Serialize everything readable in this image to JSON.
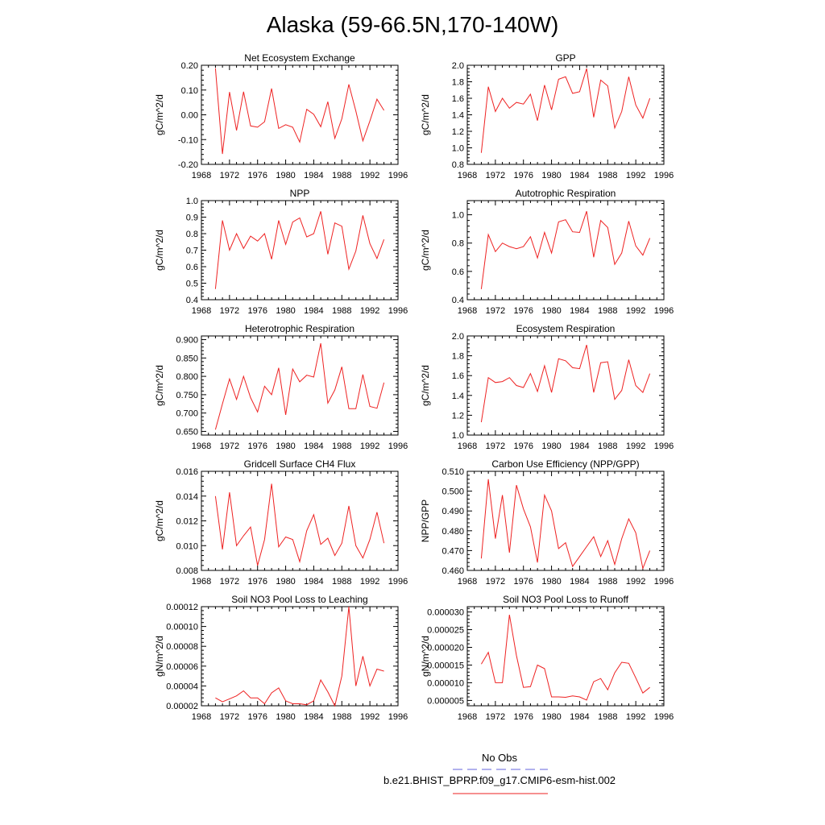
{
  "title": "Alaska (59-66.5N,170-140W)",
  "legend": {
    "entries": [
      {
        "label": "No Obs",
        "color": "#6666dd",
        "dash": true
      },
      {
        "label": "b.e21.BHIST_BPRP.f09_g17.CMIP6-esm-hist.002",
        "color": "#ee2222",
        "dash": false
      }
    ]
  },
  "chart_data": [
    {
      "type": "line",
      "title": "Net Ecosystem Exchange",
      "ylabel": "gC/m^2/d",
      "xlim": [
        1968,
        1996
      ],
      "ylim": [
        -0.2,
        0.2
      ],
      "xticks": [
        1968,
        1972,
        1976,
        1980,
        1984,
        1988,
        1992,
        1996
      ],
      "yticks": [
        -0.2,
        -0.1,
        0.0,
        0.1,
        0.2
      ],
      "yticklabels": [
        "-0.20",
        "-0.10",
        "0.00",
        "0.10",
        "0.20"
      ],
      "series": [
        {
          "color": "#ee2222",
          "x": [
            1970,
            1971,
            1972,
            1973,
            1974,
            1975,
            1976,
            1977,
            1978,
            1979,
            1980,
            1981,
            1982,
            1983,
            1984,
            1985,
            1986,
            1987,
            1988,
            1989,
            1990,
            1991,
            1992,
            1993,
            1994
          ],
          "y": [
            0.188,
            -0.158,
            0.092,
            -0.063,
            0.093,
            -0.045,
            -0.05,
            -0.028,
            0.106,
            -0.055,
            -0.04,
            -0.05,
            -0.11,
            0.022,
            0.002,
            -0.048,
            0.053,
            -0.095,
            -0.016,
            0.123,
            0.015,
            -0.105,
            -0.025,
            0.063,
            0.018
          ]
        }
      ]
    },
    {
      "type": "line",
      "title": "GPP",
      "ylabel": "gC/m^2/d",
      "xlim": [
        1968,
        1996
      ],
      "ylim": [
        0.8,
        2.0
      ],
      "xticks": [
        1968,
        1972,
        1976,
        1980,
        1984,
        1988,
        1992,
        1996
      ],
      "yticks": [
        0.8,
        1.0,
        1.2,
        1.4,
        1.6,
        1.8,
        2.0
      ],
      "yticklabels": [
        "0.8",
        "1.0",
        "1.2",
        "1.4",
        "1.6",
        "1.8",
        "2.0"
      ],
      "series": [
        {
          "color": "#ee2222",
          "x": [
            1970,
            1971,
            1972,
            1973,
            1974,
            1975,
            1976,
            1977,
            1978,
            1979,
            1980,
            1981,
            1982,
            1983,
            1984,
            1985,
            1986,
            1987,
            1988,
            1989,
            1990,
            1991,
            1992,
            1993,
            1994
          ],
          "y": [
            0.94,
            1.74,
            1.44,
            1.6,
            1.48,
            1.55,
            1.53,
            1.65,
            1.33,
            1.76,
            1.46,
            1.83,
            1.86,
            1.66,
            1.68,
            1.96,
            1.37,
            1.82,
            1.75,
            1.24,
            1.44,
            1.86,
            1.52,
            1.36,
            1.6
          ]
        }
      ]
    },
    {
      "type": "line",
      "title": "NPP",
      "ylabel": "gC/m^2/d",
      "xlim": [
        1968,
        1996
      ],
      "ylim": [
        0.4,
        1.0
      ],
      "xticks": [
        1968,
        1972,
        1976,
        1980,
        1984,
        1988,
        1992,
        1996
      ],
      "yticks": [
        0.4,
        0.5,
        0.6,
        0.7,
        0.8,
        0.9,
        1.0
      ],
      "yticklabels": [
        "0.4",
        "0.5",
        "0.6",
        "0.7",
        "0.8",
        "0.9",
        "1.0"
      ],
      "series": [
        {
          "color": "#ee2222",
          "x": [
            1970,
            1971,
            1972,
            1973,
            1974,
            1975,
            1976,
            1977,
            1978,
            1979,
            1980,
            1981,
            1982,
            1983,
            1984,
            1985,
            1986,
            1987,
            1988,
            1989,
            1990,
            1991,
            1992,
            1993,
            1994
          ],
          "y": [
            0.465,
            0.88,
            0.7,
            0.8,
            0.71,
            0.785,
            0.755,
            0.8,
            0.645,
            0.88,
            0.735,
            0.87,
            0.895,
            0.78,
            0.8,
            0.935,
            0.675,
            0.865,
            0.845,
            0.585,
            0.695,
            0.91,
            0.74,
            0.65,
            0.765
          ]
        }
      ]
    },
    {
      "type": "line",
      "title": "Autotrophic Respiration",
      "ylabel": "gC/m^2/d",
      "xlim": [
        1968,
        1996
      ],
      "ylim": [
        0.4,
        1.1
      ],
      "xticks": [
        1968,
        1972,
        1976,
        1980,
        1984,
        1988,
        1992,
        1996
      ],
      "yticks": [
        0.4,
        0.6,
        0.8,
        1.0
      ],
      "yticklabels": [
        "0.4",
        "0.6",
        "0.8",
        "1.0"
      ],
      "series": [
        {
          "color": "#ee2222",
          "x": [
            1970,
            1971,
            1972,
            1973,
            1974,
            1975,
            1976,
            1977,
            1978,
            1979,
            1980,
            1981,
            1982,
            1983,
            1984,
            1985,
            1986,
            1987,
            1988,
            1989,
            1990,
            1991,
            1992,
            1993,
            1994
          ],
          "y": [
            0.475,
            0.86,
            0.74,
            0.8,
            0.775,
            0.76,
            0.775,
            0.845,
            0.695,
            0.875,
            0.73,
            0.95,
            0.965,
            0.88,
            0.875,
            1.025,
            0.7,
            0.96,
            0.91,
            0.65,
            0.73,
            0.955,
            0.78,
            0.715,
            0.835
          ]
        }
      ]
    },
    {
      "type": "line",
      "title": "Heterotrophic Respiration",
      "ylabel": "gC/m^2/d",
      "xlim": [
        1968,
        1996
      ],
      "ylim": [
        0.64,
        0.91
      ],
      "xticks": [
        1968,
        1972,
        1976,
        1980,
        1984,
        1988,
        1992,
        1996
      ],
      "yticks": [
        0.65,
        0.7,
        0.75,
        0.8,
        0.85,
        0.9
      ],
      "yticklabels": [
        "0.650",
        "0.700",
        "0.750",
        "0.800",
        "0.850",
        "0.900"
      ],
      "series": [
        {
          "color": "#ee2222",
          "x": [
            1970,
            1971,
            1972,
            1973,
            1974,
            1975,
            1976,
            1977,
            1978,
            1979,
            1980,
            1981,
            1982,
            1983,
            1984,
            1985,
            1986,
            1987,
            1988,
            1989,
            1990,
            1991,
            1992,
            1993,
            1994
          ],
          "y": [
            0.655,
            0.725,
            0.793,
            0.737,
            0.8,
            0.742,
            0.703,
            0.773,
            0.75,
            0.823,
            0.695,
            0.82,
            0.785,
            0.803,
            0.798,
            0.89,
            0.727,
            0.763,
            0.826,
            0.712,
            0.712,
            0.805,
            0.718,
            0.713,
            0.783
          ]
        }
      ]
    },
    {
      "type": "line",
      "title": "Ecosystem Respiration",
      "ylabel": "gC/m^2/d",
      "xlim": [
        1968,
        1996
      ],
      "ylim": [
        1.0,
        2.0
      ],
      "xticks": [
        1968,
        1972,
        1976,
        1980,
        1984,
        1988,
        1992,
        1996
      ],
      "yticks": [
        1.0,
        1.2,
        1.4,
        1.6,
        1.8,
        2.0
      ],
      "yticklabels": [
        "1.0",
        "1.2",
        "1.4",
        "1.6",
        "1.8",
        "2.0"
      ],
      "series": [
        {
          "color": "#ee2222",
          "x": [
            1970,
            1971,
            1972,
            1973,
            1974,
            1975,
            1976,
            1977,
            1978,
            1979,
            1980,
            1981,
            1982,
            1983,
            1984,
            1985,
            1986,
            1987,
            1988,
            1989,
            1990,
            1991,
            1992,
            1993,
            1994
          ],
          "y": [
            1.13,
            1.58,
            1.53,
            1.54,
            1.58,
            1.5,
            1.48,
            1.62,
            1.44,
            1.7,
            1.43,
            1.77,
            1.75,
            1.68,
            1.67,
            1.91,
            1.43,
            1.73,
            1.74,
            1.36,
            1.45,
            1.76,
            1.5,
            1.43,
            1.62
          ]
        }
      ]
    },
    {
      "type": "line",
      "title": "Gridcell Surface CH4 Flux",
      "ylabel": "gC/m^2/d",
      "xlim": [
        1968,
        1996
      ],
      "ylim": [
        0.008,
        0.016
      ],
      "xticks": [
        1968,
        1972,
        1976,
        1980,
        1984,
        1988,
        1992,
        1996
      ],
      "yticks": [
        0.008,
        0.01,
        0.012,
        0.014,
        0.016
      ],
      "yticklabels": [
        "0.008",
        "0.010",
        "0.012",
        "0.014",
        "0.016"
      ],
      "series": [
        {
          "color": "#ee2222",
          "x": [
            1970,
            1971,
            1972,
            1973,
            1974,
            1975,
            1976,
            1977,
            1978,
            1979,
            1980,
            1981,
            1982,
            1983,
            1984,
            1985,
            1986,
            1987,
            1988,
            1989,
            1990,
            1991,
            1992,
            1993,
            1994
          ],
          "y": [
            0.014,
            0.0097,
            0.0143,
            0.01,
            0.0108,
            0.0115,
            0.0084,
            0.0105,
            0.015,
            0.0099,
            0.0107,
            0.0105,
            0.0087,
            0.0112,
            0.0125,
            0.0101,
            0.0106,
            0.0092,
            0.0102,
            0.0132,
            0.01,
            0.009,
            0.0105,
            0.0127,
            0.0102
          ]
        }
      ]
    },
    {
      "type": "line",
      "title": "Carbon Use Efficiency (NPP/GPP)",
      "ylabel": "NPP/GPP",
      "xlim": [
        1968,
        1996
      ],
      "ylim": [
        0.46,
        0.51
      ],
      "xticks": [
        1968,
        1972,
        1976,
        1980,
        1984,
        1988,
        1992,
        1996
      ],
      "yticks": [
        0.46,
        0.47,
        0.48,
        0.49,
        0.5,
        0.51
      ],
      "yticklabels": [
        "0.460",
        "0.470",
        "0.480",
        "0.490",
        "0.500",
        "0.510"
      ],
      "series": [
        {
          "color": "#ee2222",
          "x": [
            1970,
            1971,
            1972,
            1973,
            1974,
            1975,
            1976,
            1977,
            1978,
            1979,
            1980,
            1981,
            1982,
            1983,
            1984,
            1985,
            1986,
            1987,
            1988,
            1989,
            1990,
            1991,
            1992,
            1993,
            1994
          ],
          "y": [
            0.466,
            0.506,
            0.476,
            0.498,
            0.469,
            0.503,
            0.491,
            0.482,
            0.464,
            0.498,
            0.49,
            0.471,
            0.474,
            0.462,
            0.467,
            0.472,
            0.477,
            0.467,
            0.475,
            0.463,
            0.476,
            0.486,
            0.479,
            0.461,
            0.47
          ]
        }
      ]
    },
    {
      "type": "line",
      "title": "Soil NO3 Pool Loss to Leaching",
      "ylabel": "gN/m^2/d",
      "xlim": [
        1968,
        1996
      ],
      "ylim": [
        2e-05,
        0.00012
      ],
      "xticks": [
        1968,
        1972,
        1976,
        1980,
        1984,
        1988,
        1992,
        1996
      ],
      "yticks": [
        2e-05,
        4e-05,
        6e-05,
        8e-05,
        0.0001,
        0.00012
      ],
      "yticklabels": [
        "0.00002",
        "0.00004",
        "0.00006",
        "0.00008",
        "0.00010",
        "0.00012"
      ],
      "series": [
        {
          "color": "#ee2222",
          "x": [
            1970,
            1971,
            1972,
            1973,
            1974,
            1975,
            1976,
            1977,
            1978,
            1979,
            1980,
            1981,
            1982,
            1983,
            1984,
            1985,
            1986,
            1987,
            1988,
            1989,
            1990,
            1991,
            1992,
            1993,
            1994
          ],
          "y": [
            2.8e-05,
            2.4e-05,
            2.7e-05,
            3e-05,
            3.5e-05,
            2.8e-05,
            2.8e-05,
            2.2e-05,
            3.3e-05,
            3.8e-05,
            2.5e-05,
            2.2e-05,
            2.2e-05,
            2.1e-05,
            2.5e-05,
            4.6e-05,
            3.4e-05,
            2e-05,
            5e-05,
            0.00012,
            4e-05,
            7e-05,
            4e-05,
            5.7e-05,
            5.5e-05
          ]
        }
      ]
    },
    {
      "type": "line",
      "title": "Soil NO3 Pool Loss to Runoff",
      "ylabel": "gN/m^2/d",
      "xlim": [
        1968,
        1996
      ],
      "ylim": [
        3.5e-06,
        3.15e-05
      ],
      "xticks": [
        1968,
        1972,
        1976,
        1980,
        1984,
        1988,
        1992,
        1996
      ],
      "yticks": [
        5e-06,
        1e-05,
        1.5e-05,
        2e-05,
        2.5e-05,
        3e-05
      ],
      "yticklabels": [
        "0.000005",
        "0.000010",
        "0.000015",
        "0.000020",
        "0.000025",
        "0.000030"
      ],
      "series": [
        {
          "color": "#ee2222",
          "x": [
            1970,
            1971,
            1972,
            1973,
            1974,
            1975,
            1976,
            1977,
            1978,
            1979,
            1980,
            1981,
            1982,
            1983,
            1984,
            1985,
            1986,
            1987,
            1988,
            1989,
            1990,
            1991,
            1992,
            1993,
            1994
          ],
          "y": [
            1.53e-05,
            1.86e-05,
            1e-05,
            1e-05,
            2.92e-05,
            1.77e-05,
            8.7e-06,
            8.9e-06,
            1.5e-05,
            1.4e-05,
            6e-06,
            6e-06,
            5.9e-06,
            6.3e-06,
            6e-06,
            5.1e-06,
            1.03e-05,
            1.12e-05,
            8e-06,
            1.28e-05,
            1.58e-05,
            1.55e-05,
            1.14e-05,
            7.1e-06,
            8.7e-06
          ]
        }
      ]
    }
  ]
}
